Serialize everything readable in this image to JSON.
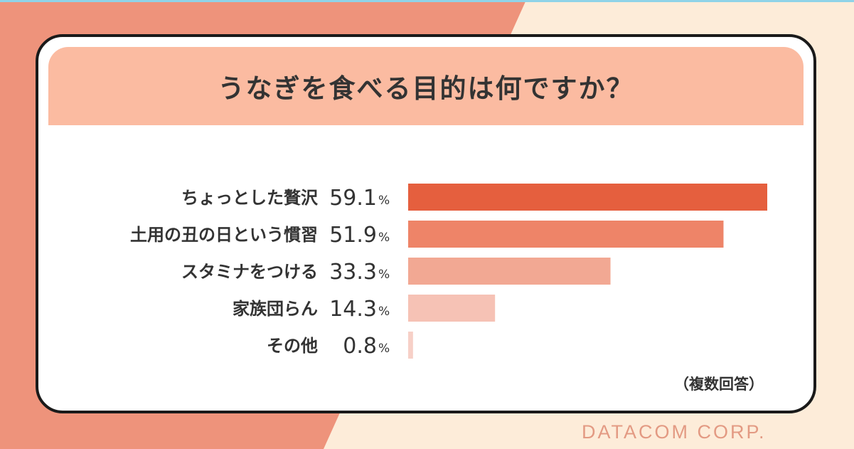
{
  "title": "うなぎを食べる目的は何ですか？",
  "note": "（複数回答）",
  "brand": "DATACOM CORP.",
  "colors": {
    "background_left": "#ee937b",
    "background_right": "#fdecd9",
    "title_band": "#fbbba1",
    "text": "#333333",
    "watermark": "#e39a83"
  },
  "chart_data": {
    "type": "bar",
    "orientation": "horizontal",
    "title": "うなぎを食べる目的は何ですか？",
    "categories": [
      "ちょっとした贅沢",
      "土用の丑の日という慣習",
      "スタミナをつける",
      "家族団らん",
      "その他"
    ],
    "values": [
      59.1,
      51.9,
      33.3,
      14.3,
      0.8
    ],
    "value_labels": [
      "59.1",
      "51.9",
      "33.3",
      "14.3",
      "0.8"
    ],
    "unit": "%",
    "bar_colors": [
      "#e55f3e",
      "#ee8468",
      "#f2a893",
      "#f6c2b5",
      "#f7d0c7"
    ],
    "xlim": [
      0,
      60
    ],
    "grid": false,
    "legend": "none",
    "annotation": "（複数回答）"
  }
}
